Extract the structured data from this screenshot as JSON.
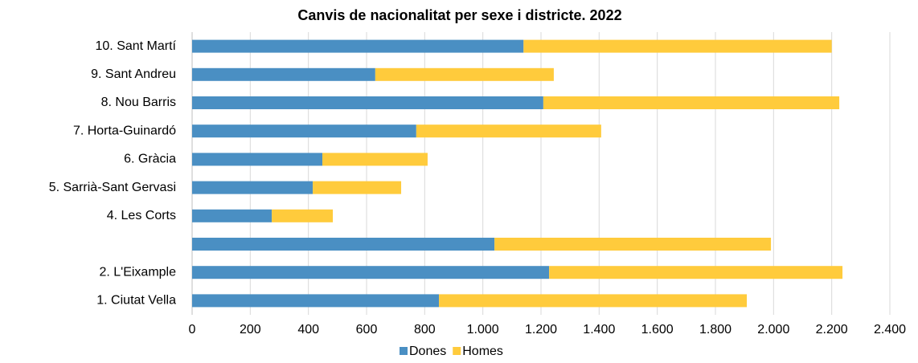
{
  "chart_data": {
    "type": "stacked_barh",
    "title": "Canvis de nacionalitat per sexe i districte. 2022",
    "categories": [
      "1. Ciutat Vella",
      "2. L'Eixample",
      null,
      "4. Les Corts",
      "5. Sarrià-Sant Gervasi",
      "6. Gràcia",
      "7. Horta-Guinardó",
      "8. Nou Barris",
      "9. Sant Andreu",
      "10. Sant Martí"
    ],
    "series": [
      {
        "name": "Dones",
        "color": "#4a8fc3",
        "values": [
          849,
          1228,
          1040,
          274,
          415,
          448,
          771,
          1208,
          630,
          1140
        ]
      },
      {
        "name": "Homes",
        "color": "#ffcb3c",
        "values": [
          1059,
          1009,
          951,
          210,
          304,
          362,
          636,
          1018,
          614,
          1060
        ]
      }
    ],
    "xlim": [
      0,
      2400
    ],
    "xticks": [
      0,
      200,
      400,
      600,
      800,
      {
        "value": 1000,
        "label": "1.000"
      },
      {
        "value": 1200,
        "label": "1.200"
      },
      {
        "value": 1400,
        "label": "1.400"
      },
      {
        "value": 1600,
        "label": "1.600"
      },
      {
        "value": 1800,
        "label": "1.800"
      },
      {
        "value": 2000,
        "label": "2.000"
      },
      {
        "value": 2200,
        "label": "2.200"
      },
      {
        "value": 2400,
        "label": "2.400"
      }
    ],
    "grid": true,
    "legend": "bottom"
  }
}
